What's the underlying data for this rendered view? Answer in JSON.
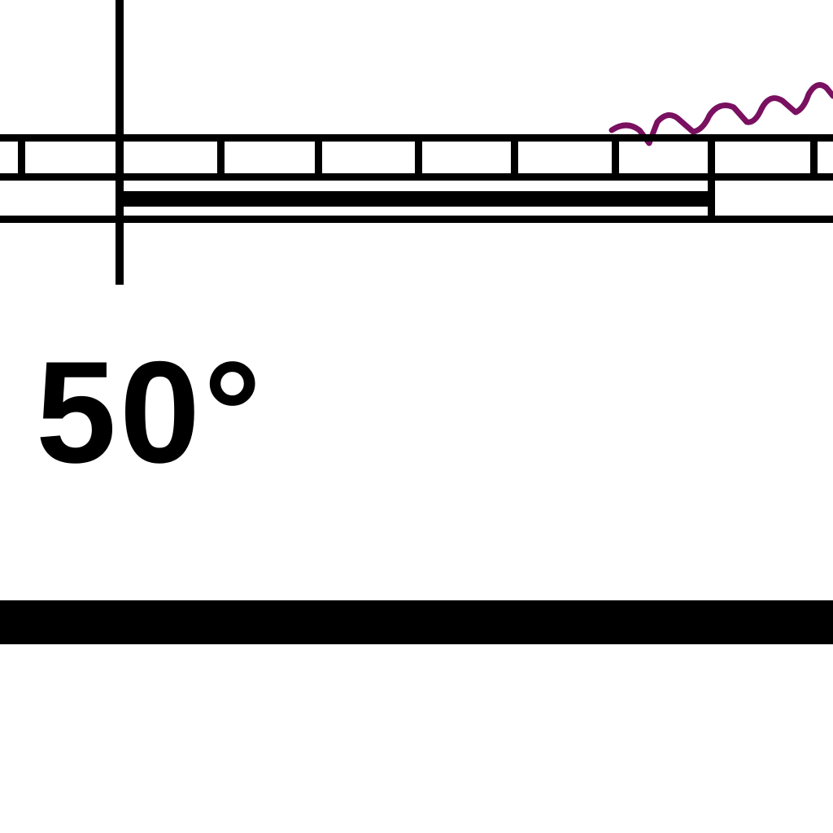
{
  "map": {
    "latitude_label": "50°",
    "colors": {
      "ink": "#000000",
      "paper": "#ffffff",
      "coastline": "#7a1060"
    }
  }
}
